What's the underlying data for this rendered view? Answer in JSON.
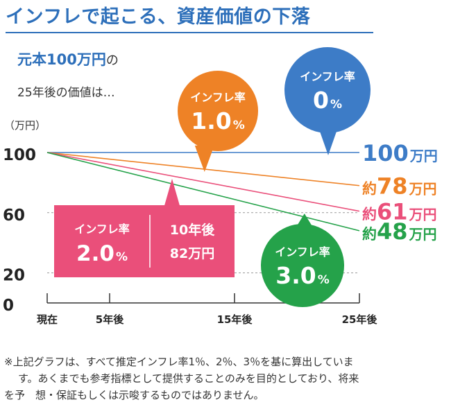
{
  "header": {
    "title": "インフレで起こる、資産価値の下落",
    "subtitle_main": "元本100万円",
    "subtitle_suffix": "の",
    "subtitle_line2": "25年後の価値は…"
  },
  "unit_label": "（万円）",
  "colors": {
    "blue": "#3d7cc7",
    "orange": "#ee8226",
    "pink": "#ea4f7a",
    "green": "#25a24a",
    "title": "#2d6fba"
  },
  "chart_data": {
    "type": "line",
    "title": "インフレで起こる、資産価値の下落",
    "ylabel": "（万円）",
    "xlabel": "",
    "x": [
      0,
      25
    ],
    "x_tick_values": [
      0,
      5,
      15,
      25
    ],
    "x_tick_labels": [
      "現在",
      "5年後",
      "15年後",
      "25年後"
    ],
    "ylim": [
      0,
      100
    ],
    "y_ticks": [
      0,
      20,
      60,
      100
    ],
    "y_tick_labels": [
      "0",
      "20",
      "60",
      "100"
    ],
    "gridlines": [
      20,
      60
    ],
    "series": [
      {
        "name": "インフレ率0%",
        "rate": "0",
        "values": [
          100,
          100
        ],
        "end_label_prefix": "",
        "end_label_value": "100",
        "end_label_unit": "万円",
        "color": "#3d7cc7"
      },
      {
        "name": "インフレ率1.0%",
        "rate": "1.0",
        "values": [
          100,
          78
        ],
        "end_label_prefix": "約",
        "end_label_value": "78",
        "end_label_unit": "万円",
        "color": "#ee8226"
      },
      {
        "name": "インフレ率2.0%",
        "rate": "2.0",
        "values": [
          100,
          61
        ],
        "end_label_prefix": "約",
        "end_label_value": "61",
        "end_label_unit": "万円",
        "color": "#ea4f7a"
      },
      {
        "name": "インフレ率3.0%",
        "rate": "3.0",
        "values": [
          100,
          48
        ],
        "end_label_prefix": "約",
        "end_label_value": "48",
        "end_label_unit": "万円",
        "color": "#25a24a"
      }
    ],
    "annotations": [
      {
        "series": 1,
        "label": "インフレ率",
        "value": "1.0",
        "pct": "%"
      },
      {
        "series": 0,
        "label": "インフレ率",
        "value": "0",
        "pct": "%"
      },
      {
        "series": 3,
        "label": "インフレ率",
        "value": "3.0",
        "pct": "%"
      },
      {
        "series": 2,
        "label": "インフレ率",
        "value": "2.0",
        "pct": "%",
        "note_line1": "10年後",
        "note_line2": "82万円"
      }
    ]
  },
  "footnote": {
    "line1": "※上記グラフは、すべて推定インフレ率1％、2％、3％を基に算出していま",
    "line2": "す。あくまでも参考指標として提供することのみを目的としており、将来",
    "line3": "を予　想・保証もしくは示唆するものではありません。"
  }
}
